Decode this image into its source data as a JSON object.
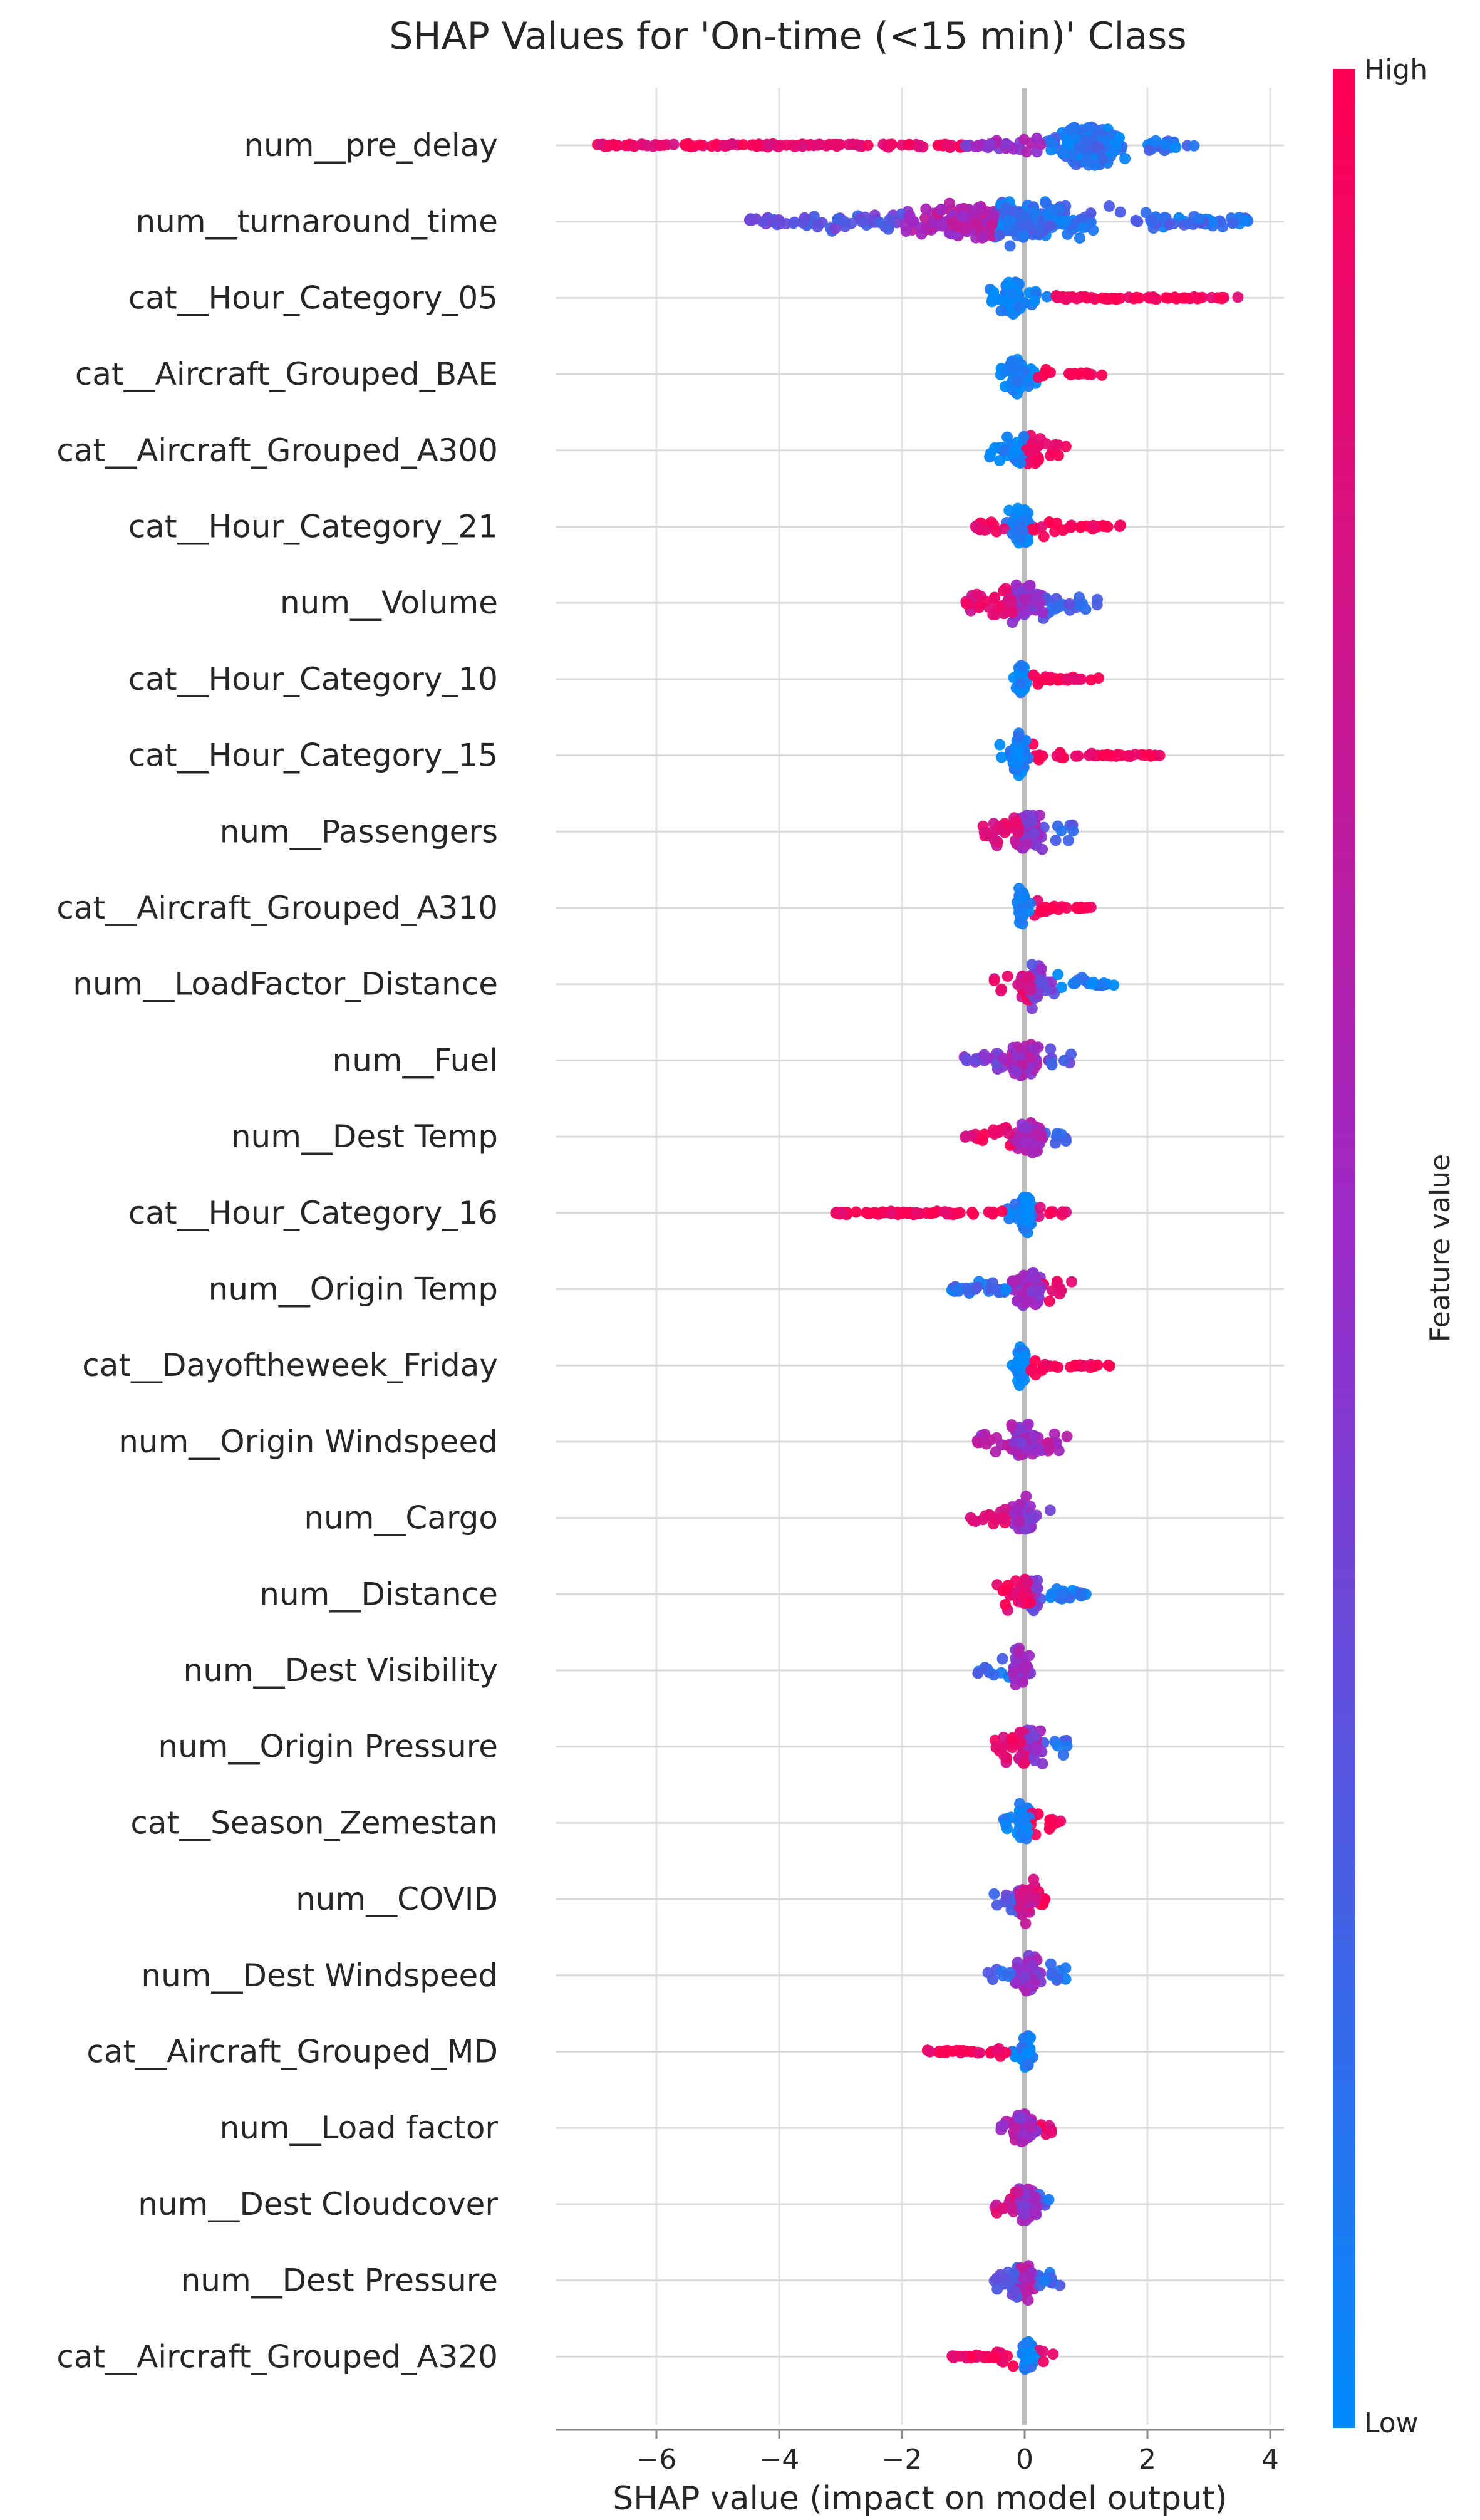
{
  "chart_data": {
    "type": "scatter",
    "subtype": "shap-beeswarm",
    "title": "SHAP Values for 'On-time (<15 min)' Class",
    "xlabel": "SHAP value (impact on model output)",
    "xlim": [
      -7.4,
      4.2
    ],
    "xticks": [
      -6,
      -4,
      -2,
      0,
      2,
      4
    ],
    "xtick_labels": [
      "−6",
      "−4",
      "−2",
      "0",
      "2",
      "4"
    ],
    "colorbar": {
      "label": "Feature value",
      "high_label": "High",
      "low_label": "Low",
      "high_color": "#ff0052",
      "low_color": "#008bfb"
    },
    "features": [
      {
        "name": "num__pre_delay",
        "min": -7.0,
        "max": 2.8,
        "core": [
          0.3,
          1.8
        ],
        "seg": [
          {
            "a": -7.0,
            "b": -1.0,
            "c": 0.9
          },
          {
            "a": -1.0,
            "b": 0.3,
            "c": 0.5
          },
          {
            "a": 0.3,
            "b": 2.8,
            "c": 0.12
          }
        ]
      },
      {
        "name": "num__turnaround_time",
        "min": -4.5,
        "max": 3.7,
        "core": [
          -2.5,
          1.8
        ],
        "seg": [
          {
            "a": -4.5,
            "b": -2.0,
            "c": 0.3
          },
          {
            "a": -2.0,
            "b": -0.5,
            "c": 0.6
          },
          {
            "a": -0.5,
            "b": 3.7,
            "c": 0.15
          }
        ]
      },
      {
        "name": "cat__Hour_Category_05",
        "min": -0.6,
        "max": 3.5,
        "core": [
          -0.4,
          0.0
        ],
        "seg": [
          {
            "a": -0.6,
            "b": 0.1,
            "c": 0.02
          },
          {
            "a": 0.4,
            "b": 3.5,
            "c": 0.98
          }
        ]
      },
      {
        "name": "cat__Aircraft_Grouped_BAE",
        "min": -0.4,
        "max": 1.3,
        "core": [
          -0.3,
          0.0
        ],
        "seg": [
          {
            "a": -0.4,
            "b": 0.1,
            "c": 0.02
          },
          {
            "a": 0.2,
            "b": 1.3,
            "c": 0.98
          }
        ]
      },
      {
        "name": "cat__Aircraft_Grouped_A300",
        "min": -0.6,
        "max": 0.7,
        "core": [
          -0.4,
          0.5
        ],
        "seg": [
          {
            "a": -0.6,
            "b": 0.0,
            "c": 0.05
          },
          {
            "a": 0.0,
            "b": 0.7,
            "c": 0.95
          }
        ]
      },
      {
        "name": "cat__Hour_Category_21",
        "min": -0.8,
        "max": 1.6,
        "core": [
          -0.3,
          0.2
        ],
        "seg": [
          {
            "a": -0.8,
            "b": -0.3,
            "c": 0.9
          },
          {
            "a": -0.3,
            "b": 0.1,
            "c": 0.03
          },
          {
            "a": 0.1,
            "b": 1.6,
            "c": 0.98
          }
        ]
      },
      {
        "name": "num__Volume",
        "min": -1.0,
        "max": 1.2,
        "core": [
          -0.6,
          0.6
        ],
        "seg": [
          {
            "a": -1.0,
            "b": -0.2,
            "c": 0.85
          },
          {
            "a": -0.2,
            "b": 0.3,
            "c": 0.5
          },
          {
            "a": 0.3,
            "b": 1.2,
            "c": 0.2
          }
        ]
      },
      {
        "name": "cat__Hour_Category_10",
        "min": -0.2,
        "max": 1.4,
        "core": [
          -0.15,
          0.05
        ],
        "seg": [
          {
            "a": -0.2,
            "b": 0.1,
            "c": 0.02
          },
          {
            "a": 0.1,
            "b": 1.4,
            "c": 0.98
          }
        ]
      },
      {
        "name": "cat__Hour_Category_15",
        "min": -0.5,
        "max": 2.2,
        "core": [
          -0.3,
          0.1
        ],
        "seg": [
          {
            "a": -0.5,
            "b": 0.1,
            "c": 0.03
          },
          {
            "a": 0.1,
            "b": 2.2,
            "c": 0.98
          }
        ]
      },
      {
        "name": "num__Passengers",
        "min": -0.7,
        "max": 0.8,
        "core": [
          -0.4,
          0.5
        ],
        "seg": [
          {
            "a": -0.7,
            "b": -0.1,
            "c": 0.8
          },
          {
            "a": -0.1,
            "b": 0.3,
            "c": 0.5
          },
          {
            "a": 0.3,
            "b": 0.8,
            "c": 0.2
          }
        ]
      },
      {
        "name": "cat__Aircraft_Grouped_A310",
        "min": -0.2,
        "max": 1.1,
        "core": [
          -0.15,
          0.05
        ],
        "seg": [
          {
            "a": -0.2,
            "b": 0.1,
            "c": 0.02
          },
          {
            "a": 0.1,
            "b": 1.1,
            "c": 0.98
          }
        ]
      },
      {
        "name": "num__LoadFactor_Distance",
        "min": -0.5,
        "max": 1.5,
        "core": [
          -0.3,
          0.5
        ],
        "seg": [
          {
            "a": -0.5,
            "b": 0.1,
            "c": 0.85
          },
          {
            "a": 0.1,
            "b": 0.5,
            "c": 0.4
          },
          {
            "a": 0.5,
            "b": 1.5,
            "c": 0.05
          }
        ]
      },
      {
        "name": "num__Fuel",
        "min": -1.0,
        "max": 0.8,
        "core": [
          -0.4,
          0.4
        ],
        "seg": [
          {
            "a": -1.0,
            "b": -0.3,
            "c": 0.45
          },
          {
            "a": -0.3,
            "b": 0.4,
            "c": 0.55
          },
          {
            "a": 0.4,
            "b": 0.8,
            "c": 0.3
          }
        ]
      },
      {
        "name": "num__Dest Temp",
        "min": -1.0,
        "max": 0.8,
        "core": [
          -0.3,
          0.5
        ],
        "seg": [
          {
            "a": -1.0,
            "b": -0.2,
            "c": 0.9
          },
          {
            "a": -0.2,
            "b": 0.3,
            "c": 0.55
          },
          {
            "a": 0.3,
            "b": 0.8,
            "c": 0.25
          }
        ]
      },
      {
        "name": "cat__Hour_Category_16",
        "min": -3.1,
        "max": 0.7,
        "core": [
          -0.1,
          0.15
        ],
        "seg": [
          {
            "a": -3.1,
            "b": -0.3,
            "c": 0.97
          },
          {
            "a": -0.3,
            "b": 0.2,
            "c": 0.05
          },
          {
            "a": 0.2,
            "b": 0.7,
            "c": 0.9
          }
        ]
      },
      {
        "name": "num__Origin Temp",
        "min": -1.2,
        "max": 0.8,
        "core": [
          -0.4,
          0.5
        ],
        "seg": [
          {
            "a": -1.2,
            "b": -0.3,
            "c": 0.15
          },
          {
            "a": -0.3,
            "b": 0.3,
            "c": 0.5
          },
          {
            "a": 0.3,
            "b": 0.8,
            "c": 0.85
          }
        ]
      },
      {
        "name": "cat__Dayoftheweek_Friday",
        "min": -0.2,
        "max": 1.4,
        "core": [
          -0.15,
          0.05
        ],
        "seg": [
          {
            "a": -0.2,
            "b": 0.1,
            "c": 0.02
          },
          {
            "a": 0.1,
            "b": 1.4,
            "c": 0.98
          }
        ]
      },
      {
        "name": "num__Origin Windspeed",
        "min": -0.8,
        "max": 0.7,
        "core": [
          -0.4,
          0.4
        ],
        "seg": [
          {
            "a": -0.8,
            "b": -0.2,
            "c": 0.6
          },
          {
            "a": -0.2,
            "b": 0.3,
            "c": 0.5
          },
          {
            "a": 0.3,
            "b": 0.7,
            "c": 0.6
          }
        ]
      },
      {
        "name": "num__Cargo",
        "min": -0.9,
        "max": 0.6,
        "core": [
          -0.4,
          0.3
        ],
        "seg": [
          {
            "a": -0.9,
            "b": -0.2,
            "c": 0.85
          },
          {
            "a": -0.2,
            "b": 0.2,
            "c": 0.5
          },
          {
            "a": 0.2,
            "b": 0.6,
            "c": 0.3
          }
        ]
      },
      {
        "name": "num__Distance",
        "min": -0.5,
        "max": 1.0,
        "core": [
          -0.3,
          0.4
        ],
        "seg": [
          {
            "a": -0.5,
            "b": 0.1,
            "c": 0.9
          },
          {
            "a": 0.1,
            "b": 0.4,
            "c": 0.35
          },
          {
            "a": 0.4,
            "b": 1.0,
            "c": 0.08
          }
        ]
      },
      {
        "name": "num__Dest Visibility",
        "min": -0.8,
        "max": 0.3,
        "core": [
          -0.4,
          0.2
        ],
        "seg": [
          {
            "a": -0.8,
            "b": -0.2,
            "c": 0.15
          },
          {
            "a": -0.2,
            "b": 0.1,
            "c": 0.5
          },
          {
            "a": 0.1,
            "b": 0.3,
            "c": 0.9
          }
        ]
      },
      {
        "name": "num__Origin Pressure",
        "min": -0.5,
        "max": 0.7,
        "core": [
          -0.3,
          0.4
        ],
        "seg": [
          {
            "a": -0.5,
            "b": 0.0,
            "c": 0.85
          },
          {
            "a": 0.0,
            "b": 0.3,
            "c": 0.5
          },
          {
            "a": 0.3,
            "b": 0.7,
            "c": 0.15
          }
        ]
      },
      {
        "name": "cat__Season_Zemestan",
        "min": -0.4,
        "max": 0.6,
        "core": [
          -0.2,
          0.2
        ],
        "seg": [
          {
            "a": -0.4,
            "b": 0.1,
            "c": 0.05
          },
          {
            "a": 0.1,
            "b": 0.6,
            "c": 0.95
          }
        ]
      },
      {
        "name": "num__COVID",
        "min": -0.5,
        "max": 0.4,
        "core": [
          -0.3,
          0.3
        ],
        "seg": [
          {
            "a": -0.5,
            "b": -0.1,
            "c": 0.3
          },
          {
            "a": -0.1,
            "b": 0.2,
            "c": 0.7
          },
          {
            "a": 0.2,
            "b": 0.4,
            "c": 0.95
          }
        ]
      },
      {
        "name": "num__Dest Windspeed",
        "min": -0.6,
        "max": 0.7,
        "core": [
          -0.3,
          0.4
        ],
        "seg": [
          {
            "a": -0.6,
            "b": -0.2,
            "c": 0.2
          },
          {
            "a": -0.2,
            "b": 0.3,
            "c": 0.5
          },
          {
            "a": 0.3,
            "b": 0.7,
            "c": 0.15
          }
        ]
      },
      {
        "name": "cat__Aircraft_Grouped_MD",
        "min": -1.6,
        "max": 0.2,
        "core": [
          -0.1,
          0.15
        ],
        "seg": [
          {
            "a": -1.6,
            "b": -0.2,
            "c": 0.97
          },
          {
            "a": -0.2,
            "b": 0.2,
            "c": 0.04
          }
        ]
      },
      {
        "name": "num__Load factor",
        "min": -0.4,
        "max": 0.5,
        "core": [
          -0.3,
          0.3
        ],
        "seg": [
          {
            "a": -0.4,
            "b": -0.1,
            "c": 0.6
          },
          {
            "a": -0.1,
            "b": 0.2,
            "c": 0.5
          },
          {
            "a": 0.2,
            "b": 0.5,
            "c": 0.9
          }
        ]
      },
      {
        "name": "num__Dest Cloudcover",
        "min": -0.5,
        "max": 0.4,
        "core": [
          -0.3,
          0.3
        ],
        "seg": [
          {
            "a": -0.5,
            "b": -0.1,
            "c": 0.8
          },
          {
            "a": -0.1,
            "b": 0.2,
            "c": 0.5
          },
          {
            "a": 0.2,
            "b": 0.4,
            "c": 0.2
          }
        ]
      },
      {
        "name": "num__Dest Pressure",
        "min": -0.5,
        "max": 0.6,
        "core": [
          -0.3,
          0.3
        ],
        "seg": [
          {
            "a": -0.5,
            "b": -0.1,
            "c": 0.3
          },
          {
            "a": -0.1,
            "b": 0.2,
            "c": 0.6
          },
          {
            "a": 0.2,
            "b": 0.6,
            "c": 0.2
          }
        ]
      },
      {
        "name": "cat__Aircraft_Grouped_A320",
        "min": -1.2,
        "max": 0.5,
        "core": [
          -0.1,
          0.2
        ],
        "seg": [
          {
            "a": -1.2,
            "b": -0.1,
            "c": 0.95
          },
          {
            "a": -0.1,
            "b": 0.2,
            "c": 0.05
          },
          {
            "a": 0.2,
            "b": 0.5,
            "c": 0.9
          }
        ]
      }
    ]
  }
}
